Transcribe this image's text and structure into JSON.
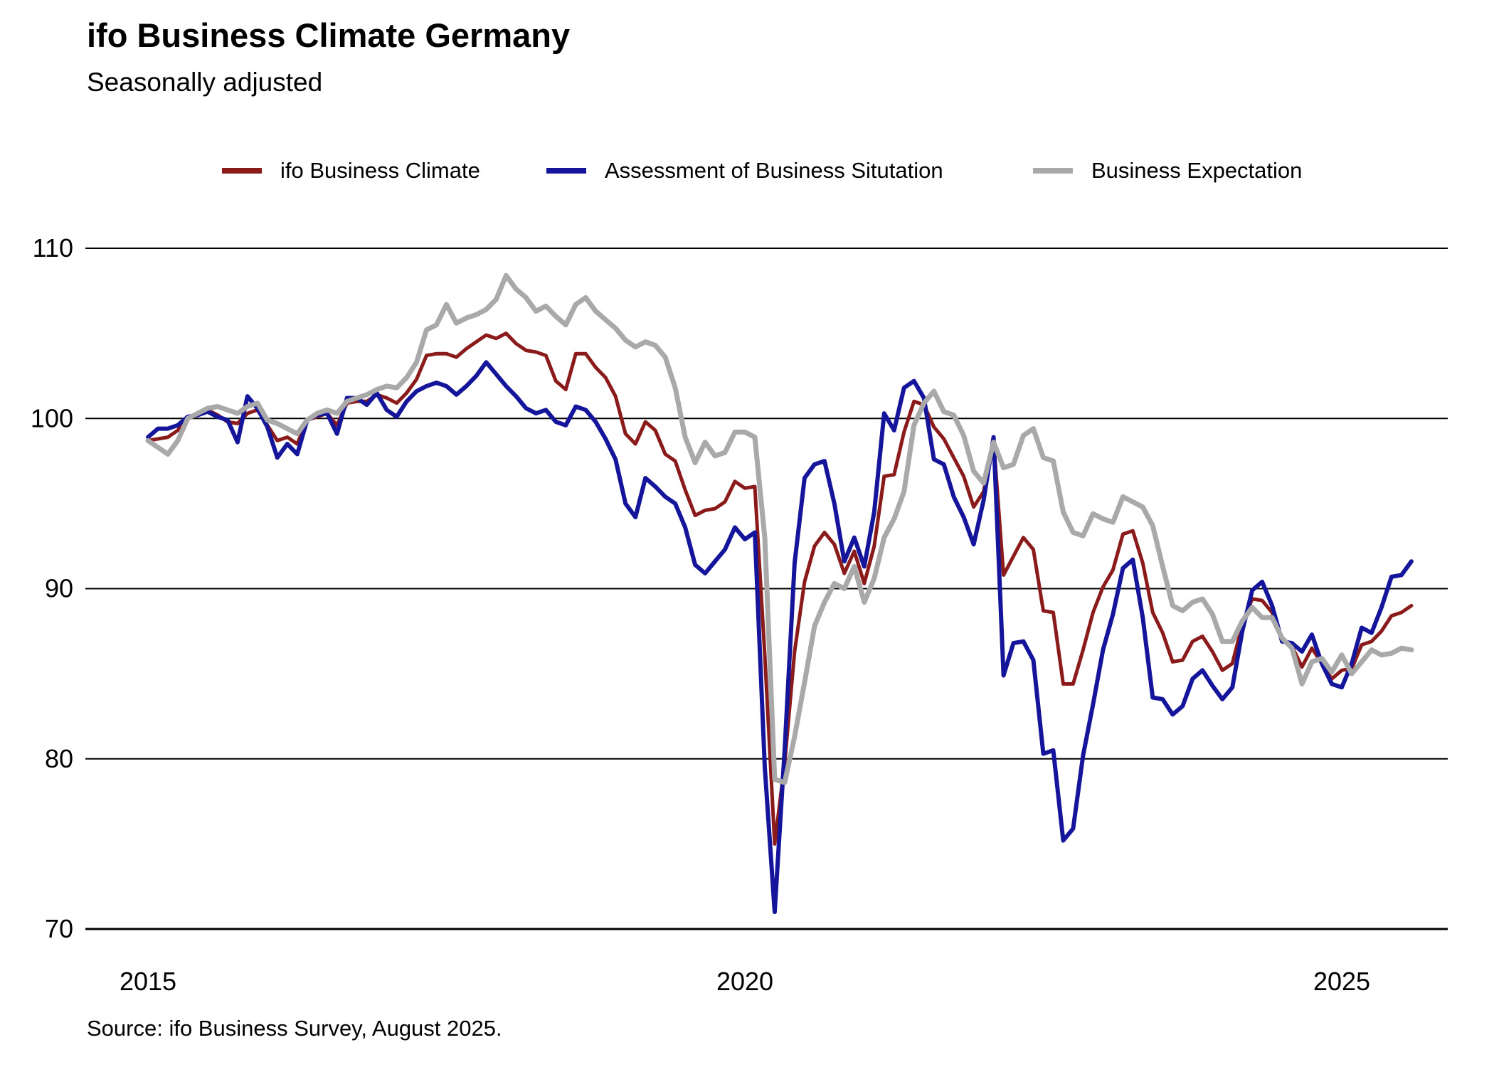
{
  "header": {
    "title": "ifo Business Climate Germany",
    "subtitle": "Seasonally adjusted"
  },
  "source": "Source: ifo Business Survey, August 2025.",
  "legend": [
    {
      "label": "ifo Business Climate",
      "color": "#8b1a1a"
    },
    {
      "label": "Assessment of Business Situtation",
      "color": "#15159c"
    },
    {
      "label": "Business Expectation",
      "color": "#a9a9a9"
    }
  ],
  "chart_data": {
    "type": "line",
    "title": "ifo Business Climate Germany",
    "subtitle": "Seasonally adjusted",
    "frequency": "monthly",
    "x_start": "2015-01",
    "x_end": "2025-08",
    "x_tick_labels": [
      "2015",
      "2020",
      "2025"
    ],
    "x_tick_month_index": [
      0,
      60,
      120
    ],
    "ylim": [
      70,
      110
    ],
    "yticks": [
      70,
      80,
      90,
      100,
      110
    ],
    "grid": "horizontal",
    "legend_position": "top",
    "axis_color": "#000000",
    "background": "#ffffff",
    "series": [
      {
        "name": "ifo Business Climate",
        "color": "#8b1a1a",
        "stroke_width": 5,
        "values": [
          98.7,
          98.8,
          98.9,
          99.3,
          100.1,
          100.2,
          100.5,
          100.2,
          99.8,
          99.7,
          100.3,
          100.5,
          99.6,
          98.7,
          98.9,
          98.5,
          99.9,
          100.1,
          100.3,
          99.6,
          100.9,
          101.0,
          101.0,
          101.4,
          101.2,
          100.9,
          101.5,
          102.3,
          103.7,
          103.8,
          103.8,
          103.6,
          104.1,
          104.5,
          104.9,
          104.7,
          105.0,
          104.4,
          104.0,
          103.9,
          103.7,
          102.2,
          101.7,
          103.8,
          103.8,
          103.0,
          102.4,
          101.3,
          99.1,
          98.5,
          99.8,
          99.3,
          97.9,
          97.5,
          95.8,
          94.3,
          94.6,
          94.7,
          95.1,
          96.3,
          95.9,
          96.0,
          86.1,
          75.0,
          79.7,
          86.3,
          90.4,
          92.5,
          93.3,
          92.6,
          90.9,
          92.2,
          90.3,
          92.5,
          96.6,
          96.7,
          99.2,
          101.0,
          100.8,
          99.5,
          98.8,
          97.7,
          96.6,
          94.8,
          95.7,
          98.7,
          90.8,
          91.9,
          93.0,
          92.3,
          88.7,
          88.6,
          84.4,
          84.4,
          86.4,
          88.6,
          90.1,
          91.1,
          93.2,
          93.4,
          91.5,
          88.6,
          87.4,
          85.7,
          85.8,
          86.9,
          87.2,
          86.3,
          85.2,
          85.6,
          87.9,
          89.4,
          89.3,
          88.6,
          87.0,
          86.6,
          85.4,
          86.5,
          85.6,
          84.7,
          85.2,
          85.3,
          86.7,
          86.9,
          87.5,
          88.4,
          88.6,
          89.0
        ]
      },
      {
        "name": "Assessment of Business Situtation",
        "color": "#15159c",
        "stroke_width": 6,
        "values": [
          98.9,
          99.4,
          99.4,
          99.6,
          100.1,
          100.2,
          100.4,
          100.1,
          99.9,
          98.6,
          101.3,
          100.6,
          99.5,
          97.7,
          98.5,
          97.9,
          99.9,
          100.2,
          100.3,
          99.1,
          101.2,
          101.2,
          100.8,
          101.5,
          100.5,
          100.1,
          101.0,
          101.6,
          101.9,
          102.1,
          101.9,
          101.4,
          101.9,
          102.5,
          103.3,
          102.6,
          101.9,
          101.3,
          100.6,
          100.3,
          100.5,
          99.8,
          99.6,
          100.7,
          100.5,
          99.8,
          98.8,
          97.6,
          95.0,
          94.2,
          96.5,
          96.0,
          95.4,
          95.0,
          93.6,
          91.4,
          90.9,
          91.6,
          92.3,
          93.6,
          92.9,
          93.3,
          79.5,
          71.0,
          80.5,
          91.5,
          96.5,
          97.3,
          97.5,
          95.0,
          91.6,
          93.0,
          91.3,
          94.5,
          100.3,
          99.3,
          101.8,
          102.2,
          101.2,
          97.6,
          97.3,
          95.4,
          94.2,
          92.6,
          95.2,
          98.9,
          84.9,
          86.8,
          86.9,
          85.8,
          80.3,
          80.5,
          75.2,
          75.9,
          80.2,
          83.2,
          86.4,
          88.5,
          91.2,
          91.7,
          88.3,
          83.6,
          83.5,
          82.6,
          83.1,
          84.7,
          85.2,
          84.3,
          83.5,
          84.2,
          87.5,
          89.9,
          90.4,
          89.0,
          86.9,
          86.8,
          86.3,
          87.3,
          85.6,
          84.4,
          84.2,
          85.6,
          87.7,
          87.4,
          88.9,
          90.7,
          90.8,
          91.6
        ]
      },
      {
        "name": "Business Expectation",
        "color": "#a9a9a9",
        "stroke_width": 7,
        "values": [
          98.7,
          98.3,
          97.9,
          98.7,
          100.0,
          100.3,
          100.6,
          100.7,
          100.5,
          100.3,
          100.7,
          100.9,
          99.9,
          99.7,
          99.4,
          99.1,
          99.9,
          100.3,
          100.5,
          100.3,
          101.0,
          101.2,
          101.4,
          101.7,
          101.9,
          101.8,
          102.4,
          103.3,
          105.2,
          105.5,
          106.7,
          105.6,
          105.9,
          106.1,
          106.4,
          107.0,
          108.4,
          107.6,
          107.1,
          106.3,
          106.6,
          106.0,
          105.5,
          106.7,
          107.1,
          106.3,
          105.8,
          105.3,
          104.6,
          104.2,
          104.5,
          104.3,
          103.6,
          101.8,
          98.9,
          97.4,
          98.6,
          97.8,
          98.0,
          99.2,
          99.2,
          98.9,
          93.0,
          78.8,
          78.6,
          81.3,
          84.5,
          87.8,
          89.2,
          90.3,
          90.0,
          91.3,
          89.2,
          90.6,
          93.0,
          94.1,
          95.7,
          99.6,
          100.9,
          101.6,
          100.4,
          100.2,
          99.0,
          96.9,
          96.2,
          98.6,
          97.1,
          97.3,
          99.0,
          99.4,
          97.7,
          97.5,
          94.5,
          93.3,
          93.1,
          94.4,
          94.1,
          93.9,
          95.4,
          95.1,
          94.8,
          93.7,
          91.3,
          89.0,
          88.7,
          89.2,
          89.4,
          88.5,
          86.9,
          86.9,
          88.1,
          88.9,
          88.3,
          88.3,
          87.1,
          86.5,
          84.4,
          85.7,
          85.9,
          85.1,
          86.1,
          85.0,
          85.7,
          86.4,
          86.1,
          86.2,
          86.5,
          86.4
        ]
      }
    ]
  }
}
